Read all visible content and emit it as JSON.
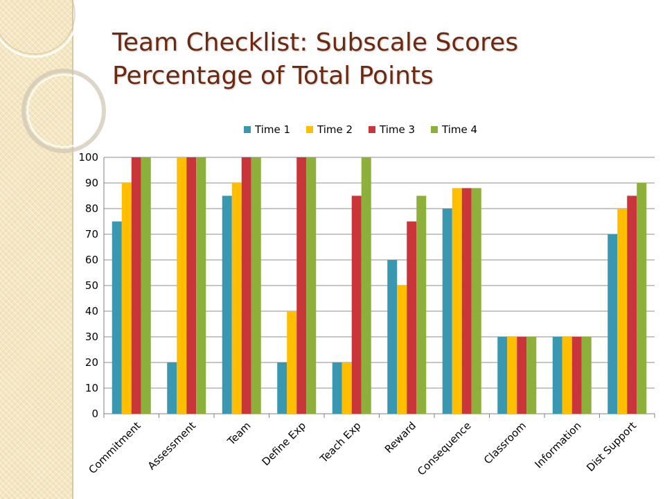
{
  "slide": {
    "title_line1": "Team Checklist: Subscale Scores",
    "title_line2": "Percentage of Total Points"
  },
  "colors": {
    "title": "#6b2a10",
    "strip": "#f4e6c0"
  },
  "chart_data": {
    "type": "bar",
    "categories": [
      "Commitment",
      "Assessment",
      "Team",
      "Define Exp",
      "Teach Exp",
      "Reward",
      "Consequence",
      "Classroom",
      "Information",
      "Dist Support"
    ],
    "series": [
      {
        "name": "Time 1",
        "color": "#3a97b0",
        "values": [
          75,
          20,
          85,
          20,
          20,
          60,
          80,
          30,
          30,
          70
        ]
      },
      {
        "name": "Time 2",
        "color": "#ffbf00",
        "values": [
          90,
          100,
          90,
          40,
          20,
          50,
          88,
          30,
          30,
          80
        ]
      },
      {
        "name": "Time 3",
        "color": "#c9363a",
        "values": [
          100,
          100,
          100,
          100,
          85,
          75,
          88,
          30,
          30,
          85
        ]
      },
      {
        "name": "Time 4",
        "color": "#8db03a",
        "values": [
          100,
          100,
          100,
          100,
          100,
          85,
          88,
          30,
          30,
          90
        ]
      }
    ],
    "yticks": [
      0,
      10,
      20,
      30,
      40,
      50,
      60,
      70,
      80,
      90,
      100
    ],
    "ylim": [
      0,
      100
    ],
    "grid": true,
    "legend_position": "top"
  }
}
